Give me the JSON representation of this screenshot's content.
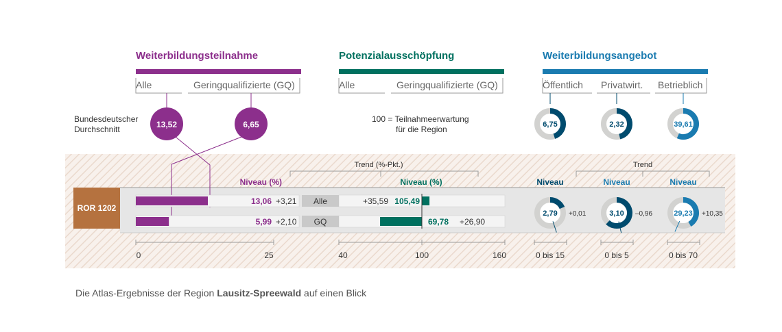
{
  "colors": {
    "purple": "#8c2f8c",
    "green": "#00705f",
    "blue": "#1a7bb0",
    "navy": "#004b6e",
    "brown": "#b5723f",
    "grey_ring": "#d2d2d0",
    "row_bg": "#e6e6e6",
    "hatch": "#e8d7cc"
  },
  "sections": {
    "participation": {
      "title": "Weiterbildungsteilnahme",
      "cols": [
        "Alle",
        "Geringqualifizierte (GQ)"
      ]
    },
    "exploitation": {
      "title": "Potenzialausschöpfung",
      "cols": [
        "Alle",
        "Geringqualifizierte (GQ)"
      ]
    },
    "offer": {
      "title": "Weiterbildungsangebot",
      "cols": [
        "Öffentlich",
        "Privatwirt.",
        "Betrieblich"
      ]
    }
  },
  "federal": {
    "label_line1": "Bundesdeutscher",
    "label_line2": "Durchschnitt",
    "values": [
      "13,52",
      "6,65"
    ]
  },
  "expectation_note": {
    "line1": "100 = Teilnahmeerwartung",
    "line2": "für die Region"
  },
  "offer_federal": [
    "6,75",
    "2,32",
    "39,61"
  ],
  "headers": {
    "niveau_pct": "Niveau (%)",
    "trend_pp": "Trend (%-Pkt.)",
    "niveau_pct2": "Niveau (%)",
    "trend": "Trend",
    "niveau": "Niveau"
  },
  "region": {
    "code": "ROR 1202",
    "name": "Lausitz-Spreewald"
  },
  "rows": [
    {
      "label": "Alle",
      "part_value": "13,06",
      "part_trend": "+3,21",
      "pot_trend": "+35,59",
      "pot_value": "105,49"
    },
    {
      "label": "GQ",
      "part_value": "5,99",
      "part_trend": "+2,10",
      "pot_trend": "+26,90",
      "pot_value": "69,78"
    }
  ],
  "offer_region": [
    {
      "value": "2,79",
      "trend": "+0,01"
    },
    {
      "value": "3,10",
      "trend": "–0,96"
    },
    {
      "value": "29,23",
      "trend": "+10,35"
    }
  ],
  "axes": {
    "participation": {
      "ticks": [
        "0",
        "25"
      ]
    },
    "exploitation": {
      "ticks": [
        "40",
        "100",
        "160"
      ]
    },
    "offer": {
      "ticks": [
        "0 bis 15",
        "0 bis 5",
        "0 bis 70"
      ]
    }
  },
  "caption": {
    "prefix": "Die Atlas-Ergebnisse der Region ",
    "region": "Lausitz-Spreewald",
    "suffix": " auf einen Blick"
  },
  "chart_data": [
    {
      "type": "bar",
      "title": "Weiterbildungsteilnahme",
      "categories": [
        "Alle",
        "GQ"
      ],
      "series": [
        {
          "name": "Niveau (%)",
          "values": [
            13.06,
            5.99
          ]
        }
      ],
      "federal_average": [
        13.52,
        6.65
      ],
      "trend_pp": [
        3.21,
        2.1
      ],
      "xlim": [
        0,
        25
      ],
      "unit": "%"
    },
    {
      "type": "bar",
      "title": "Potenzialausschöpfung",
      "categories": [
        "Alle",
        "GQ"
      ],
      "series": [
        {
          "name": "Niveau (%)",
          "values": [
            105.49,
            69.78
          ]
        }
      ],
      "reference": 100,
      "trend_pp": [
        35.59,
        26.9
      ],
      "xlim": [
        40,
        160
      ]
    },
    {
      "type": "pie",
      "title": "Weiterbildungsangebot",
      "categories": [
        "Öffentlich",
        "Privatwirt.",
        "Betrieblich"
      ],
      "region_values": [
        2.79,
        3.1,
        29.23
      ],
      "federal_values": [
        6.75,
        2.32,
        39.61
      ],
      "trend": [
        0.01,
        -0.96,
        10.35
      ],
      "scale_max": [
        15,
        5,
        70
      ],
      "scale_labels": [
        "0 bis 15",
        "0 bis 5",
        "0 bis 70"
      ]
    }
  ]
}
